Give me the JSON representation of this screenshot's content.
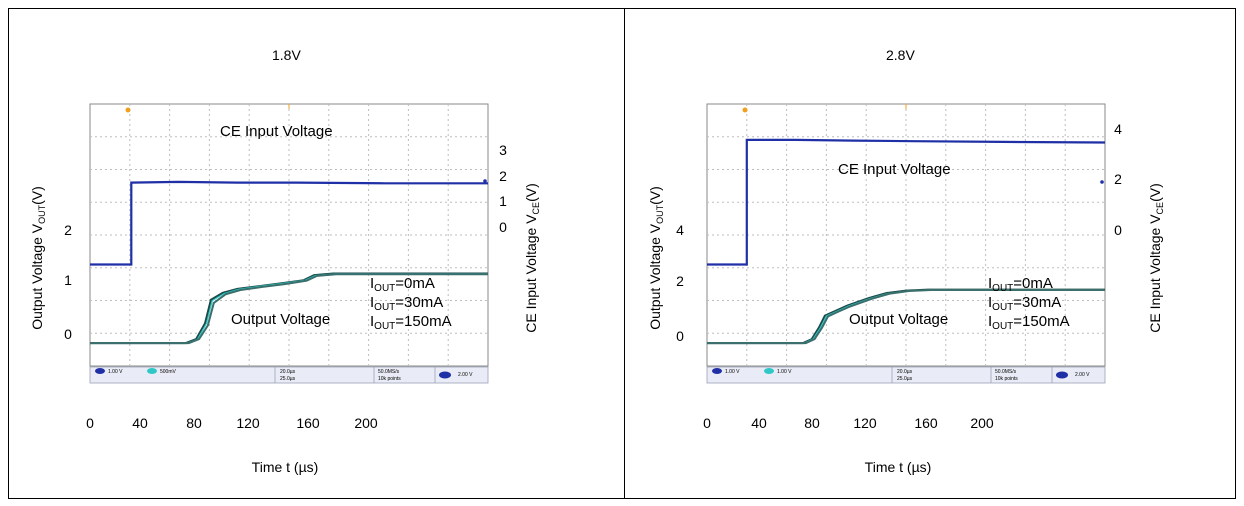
{
  "colors": {
    "frame": "#000000",
    "scope_bg": "#ffffff",
    "grid": "#bdbdbd",
    "ce_trace": "#1f2fa6",
    "out_trace": "#1d4a48",
    "out_trace_alt": "#2ec8c8",
    "trigger": "#f0a020",
    "status_bar": "#e9ecf6"
  },
  "panels": [
    {
      "title": "1.8V",
      "xlabel": "Time t (µs)",
      "ylabel_left_parts": [
        "Output Voltage V",
        "OUT",
        "(V)"
      ],
      "ylabel_right_parts": [
        "CE Input Voltage V",
        "CE",
        "(V)"
      ],
      "annotation_ce": "CE Input Voltage",
      "annotation_out": "Output Voltage",
      "legend": [
        {
          "main": "I",
          "sub": "OUT",
          "rest": "=0mA"
        },
        {
          "main": "I",
          "sub": "OUT",
          "rest": "=30mA"
        },
        {
          "main": "I",
          "sub": "OUT",
          "rest": "=150mA"
        }
      ],
      "x_ticks": [
        "0",
        "40",
        "80",
        "120",
        "160",
        "200"
      ],
      "left_ticks": [
        "2",
        "1",
        "0"
      ],
      "right_ticks": [
        "3",
        "2",
        "1",
        "0"
      ],
      "status_bar": {
        "ch1": "1.00 V",
        "ch2": "500mV",
        "ch3": "20.0µs",
        "ch4": "25.0µs",
        "rate": "50.0MS/s",
        "points": "10k points",
        "trig": "2.00 V"
      }
    },
    {
      "title": "2.8V",
      "xlabel": "Time t (µs)",
      "ylabel_left_parts": [
        "Output Voltage V",
        "OUT",
        "(V)"
      ],
      "ylabel_right_parts": [
        "CE Input Voltage V",
        "CE",
        "(V)"
      ],
      "annotation_ce": "CE Input Voltage",
      "annotation_out": "Output Voltage",
      "legend": [
        {
          "main": "I",
          "sub": "OUT",
          "rest": "=0mA"
        },
        {
          "main": "I",
          "sub": "OUT",
          "rest": "=30mA"
        },
        {
          "main": "I",
          "sub": "OUT",
          "rest": "=150mA"
        }
      ],
      "x_ticks": [
        "0",
        "40",
        "80",
        "120",
        "160",
        "200"
      ],
      "left_ticks": [
        "4",
        "2",
        "0"
      ],
      "right_ticks": [
        "4",
        "2",
        "0"
      ],
      "status_bar": {
        "ch1": "1.00 V",
        "ch2": "1.00 V",
        "ch3": "20.0µs",
        "ch4": "25.0µs",
        "rate": "50.0MS/s",
        "points": "10k points",
        "trig": "2.00 V"
      }
    }
  ],
  "chart_data": [
    {
      "type": "line",
      "title": "1.8V",
      "xlabel": "Time t (µs)",
      "ylabel": "Output Voltage VOUT(V)",
      "y2label": "CE Input Voltage VCE(V)",
      "x_ticks": [
        0,
        40,
        80,
        120,
        160,
        200
      ],
      "y_ticks": [
        0,
        1,
        2
      ],
      "y2_ticks": [
        0,
        1,
        2,
        3
      ],
      "series": [
        {
          "name": "CE Input Voltage",
          "axis": "right",
          "x": [
            0,
            28,
            28,
            60,
            100,
            140,
            200,
            270
          ],
          "y": [
            0,
            0,
            2.5,
            2.52,
            2.5,
            2.5,
            2.48,
            2.48
          ]
        },
        {
          "name": "IOUT=0mA",
          "axis": "left",
          "x": [
            0,
            65,
            72,
            78,
            82,
            90,
            100,
            115,
            130,
            145,
            152,
            165,
            200,
            270
          ],
          "y": [
            0,
            0,
            0.1,
            0.5,
            1.1,
            1.28,
            1.38,
            1.45,
            1.52,
            1.6,
            1.73,
            1.77,
            1.77,
            1.77
          ]
        },
        {
          "name": "IOUT=30mA",
          "axis": "left",
          "x": [
            0,
            66,
            73,
            79,
            83,
            91,
            101,
            116,
            131,
            146,
            153,
            166,
            200,
            270
          ],
          "y": [
            0,
            0,
            0.1,
            0.5,
            1.08,
            1.26,
            1.37,
            1.45,
            1.52,
            1.6,
            1.72,
            1.76,
            1.76,
            1.76
          ]
        },
        {
          "name": "IOUT=150mA",
          "axis": "left",
          "x": [
            0,
            67,
            74,
            80,
            84,
            92,
            102,
            117,
            132,
            147,
            154,
            167,
            200,
            270
          ],
          "y": [
            0,
            0,
            0.1,
            0.45,
            1.02,
            1.24,
            1.35,
            1.43,
            1.5,
            1.59,
            1.71,
            1.75,
            1.75,
            1.75
          ]
        }
      ]
    },
    {
      "type": "line",
      "title": "2.8V",
      "xlabel": "Time t (µs)",
      "ylabel": "Output Voltage VOUT(V)",
      "y2label": "CE Input Voltage VCE(V)",
      "x_ticks": [
        0,
        40,
        80,
        120,
        160,
        200
      ],
      "y_ticks": [
        0,
        2,
        4
      ],
      "y2_ticks": [
        0,
        2,
        4
      ],
      "series": [
        {
          "name": "CE Input Voltage",
          "axis": "right",
          "x": [
            0,
            27,
            27,
            60,
            100,
            140,
            200,
            270
          ],
          "y": [
            0,
            0,
            3.9,
            3.9,
            3.88,
            3.86,
            3.84,
            3.82
          ]
        },
        {
          "name": "IOUT=0mA",
          "axis": "left",
          "x": [
            0,
            65,
            71,
            76,
            80,
            86,
            95,
            110,
            122,
            135,
            150,
            200,
            270
          ],
          "y": [
            0,
            0,
            0.2,
            0.8,
            1.4,
            1.6,
            1.9,
            2.3,
            2.55,
            2.67,
            2.72,
            2.72,
            2.72
          ]
        },
        {
          "name": "IOUT=30mA",
          "axis": "left",
          "x": [
            0,
            66,
            72,
            77,
            81,
            87,
            96,
            111,
            123,
            136,
            151,
            200,
            270
          ],
          "y": [
            0,
            0,
            0.2,
            0.8,
            1.38,
            1.58,
            1.88,
            2.28,
            2.53,
            2.66,
            2.71,
            2.71,
            2.71
          ]
        },
        {
          "name": "IOUT=150mA",
          "axis": "left",
          "x": [
            0,
            67,
            73,
            78,
            82,
            88,
            97,
            112,
            124,
            137,
            152,
            200,
            270
          ],
          "y": [
            0,
            0,
            0.2,
            0.78,
            1.35,
            1.56,
            1.86,
            2.26,
            2.52,
            2.65,
            2.7,
            2.7,
            2.7
          ]
        }
      ]
    }
  ]
}
